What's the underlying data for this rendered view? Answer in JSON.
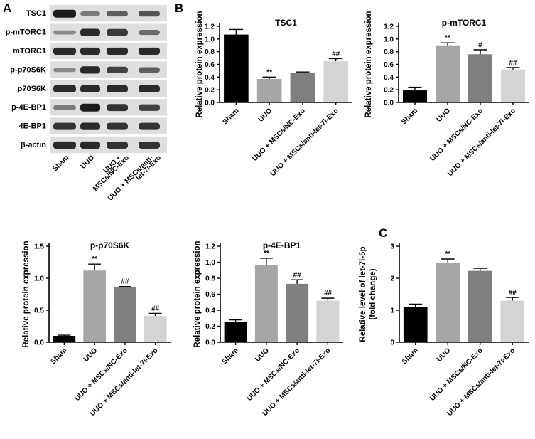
{
  "colors": {
    "bar_sham": "#000000",
    "bar_uuo": "#a6a6a6",
    "bar_nc": "#7f7f7f",
    "bar_anti": "#d4d4d4",
    "blot_background": "#dedede",
    "band": "#1c1c1c"
  },
  "panel_letters": [
    "A",
    "B",
    "C"
  ],
  "western_blot": {
    "row_labels": [
      "TSC1",
      "p-mTORC1",
      "mTORC1",
      "p-p70S6K",
      "p70S6K",
      "p-4E-BP1",
      "4E-BP1",
      "β-actin"
    ],
    "lane_labels": [
      "Sham",
      "UUO",
      "UUO + MSCs/NC-Exo",
      "UUO + MSCs/anti-let-7i-Exo"
    ],
    "lane_label_lines": [
      [
        "Sham"
      ],
      [
        "UUO"
      ],
      [
        "UUO +",
        "MSCs/NC-Exo"
      ],
      [
        "UUO + MSCs/anti-",
        "let-7i-Exo"
      ]
    ]
  },
  "chart_data": [
    {
      "type": "bar",
      "title": "TSC1",
      "ylabel": "Relative protein expression",
      "categories": [
        "Sham",
        "UUO",
        "UUO + MSCs/NC-Exo",
        "UUO + MSCs/anti-let-7i-Exo"
      ],
      "values": [
        1.07,
        0.37,
        0.46,
        0.65
      ],
      "errors": [
        0.08,
        0.03,
        0.02,
        0.04
      ],
      "significance": [
        "",
        "**",
        "",
        "##"
      ],
      "ylim": [
        0,
        1.2
      ],
      "ytick_labels": [
        "0.0",
        "0.2",
        "0.4",
        "0.6",
        "0.8",
        "1.0",
        "1.2"
      ]
    },
    {
      "type": "bar",
      "title": "p-mTORC1",
      "ylabel": "Relative protein expression",
      "categories": [
        "Sham",
        "UUO",
        "UUO + MSCs/NC-Exo",
        "UUO + MSCs/anti-let-7i-Exo"
      ],
      "values": [
        0.19,
        0.9,
        0.76,
        0.52
      ],
      "errors": [
        0.05,
        0.04,
        0.07,
        0.03
      ],
      "significance": [
        "",
        "**",
        "#",
        "##"
      ],
      "ylim": [
        0,
        1.2
      ],
      "ytick_labels": [
        "0.0",
        "0.2",
        "0.4",
        "0.6",
        "0.8",
        "1.0",
        "1.2"
      ]
    },
    {
      "type": "bar",
      "title": "p-p70S6K",
      "ylabel": "Relative protein expression",
      "categories": [
        "Sham",
        "UUO",
        "UUO + MSCs/NC-Exo",
        "UUO + MSCs/anti-let-7i-Exo"
      ],
      "values": [
        0.1,
        1.12,
        0.86,
        0.41
      ],
      "errors": [
        0.01,
        0.1,
        0.01,
        0.04
      ],
      "significance": [
        "",
        "**",
        "##",
        "##"
      ],
      "ylim": [
        0,
        1.5
      ],
      "ytick_labels": [
        "0.0",
        "0.5",
        "1.0",
        "1.5"
      ]
    },
    {
      "type": "bar",
      "title": "p-4E-BP1",
      "ylabel": "Relative protein expression",
      "categories": [
        "Sham",
        "UUO",
        "UUO + MSCs/NC-Exo",
        "UUO + MSCs/anti-let-7i-Exo"
      ],
      "values": [
        0.25,
        0.96,
        0.73,
        0.52
      ],
      "errors": [
        0.03,
        0.09,
        0.05,
        0.03
      ],
      "significance": [
        "",
        "**",
        "##",
        "##"
      ],
      "ylim": [
        0,
        1.2
      ],
      "ytick_labels": [
        "0.0",
        "0.2",
        "0.4",
        "0.6",
        "0.8",
        "1.0",
        "1.2"
      ]
    },
    {
      "type": "bar",
      "title": "",
      "ylabel": "Relative level of let-7i-5p (fold change)",
      "ylabel_lines": [
        "Relative level of let-7i-5p",
        "(fold change)"
      ],
      "categories": [
        "Sham",
        "UUO",
        "UUO + MSCs/NC-Exo",
        "UUO + MSCs/anti-let-7i-Exo"
      ],
      "values": [
        1.1,
        2.47,
        2.23,
        1.3
      ],
      "errors": [
        0.09,
        0.13,
        0.08,
        0.1
      ],
      "significance": [
        "",
        "**",
        "",
        "##"
      ],
      "ylim": [
        0,
        3
      ],
      "ytick_labels": [
        "0",
        "1",
        "2",
        "3"
      ]
    }
  ]
}
